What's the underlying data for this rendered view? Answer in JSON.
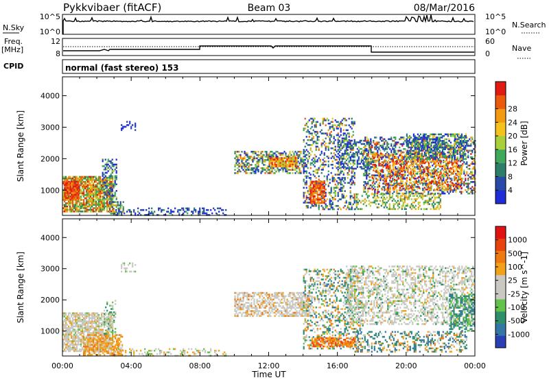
{
  "header": {
    "station": "Pykkvibaer (fitACF)",
    "beam": "Beam 03",
    "date": "08/Mar/2016"
  },
  "noise_panel": {
    "left_label": "N.Sky",
    "left_ticks": [
      "10^5",
      "10^0"
    ],
    "right_ticks": [
      "10^5",
      "10^0"
    ],
    "right_label": "N.Search"
  },
  "freq_panel": {
    "left_label_1": "Freq.",
    "left_label_2": "[MHz]",
    "left_ticks": [
      "12",
      "8"
    ],
    "right_ticks": [
      "60",
      "0"
    ],
    "right_label": "Nave"
  },
  "cpid": {
    "label": "CPID",
    "text": "normal (fast stereo) 153"
  },
  "chart_data": [
    {
      "type": "heatmap",
      "title": "",
      "xlabel": "",
      "ylabel": "Slant Range [km]",
      "ylim": [
        200,
        4600
      ],
      "yticks": [
        "1000",
        "2000",
        "3000",
        "4000"
      ],
      "colorbar": {
        "label": "Power [dB]",
        "ticks": [
          "4",
          "8",
          "12",
          "16",
          "20",
          "24",
          "28"
        ],
        "colors": [
          "#1e2dd6",
          "#2a4aa8",
          "#2d7d6a",
          "#3fa85a",
          "#a9cf3a",
          "#f3c21c",
          "#f29a10",
          "#ec5a0e",
          "#e11b12"
        ]
      }
    },
    {
      "type": "heatmap",
      "title": "",
      "xlabel": "Time UT",
      "ylabel": "Slant Range [km]",
      "ylim": [
        200,
        4600
      ],
      "yticks": [
        "1000",
        "2000",
        "3000",
        "4000"
      ],
      "xticks": [
        "00:00",
        "04:00",
        "08:00",
        "12:00",
        "16:00",
        "20:00",
        "00:00"
      ],
      "colorbar": {
        "label": "Velocity [m s^-1]",
        "ticks": [
          "1000",
          "500",
          "100",
          "25",
          "-25",
          "-100",
          "-500",
          "-1000"
        ],
        "colors": [
          "#2b3fb5",
          "#3577a4",
          "#2f8f6a",
          "#62c24a",
          "#c9c9c2",
          "#c9c9c2",
          "#f4a11a",
          "#f07a12",
          "#e8420f",
          "#e01212"
        ]
      }
    }
  ]
}
